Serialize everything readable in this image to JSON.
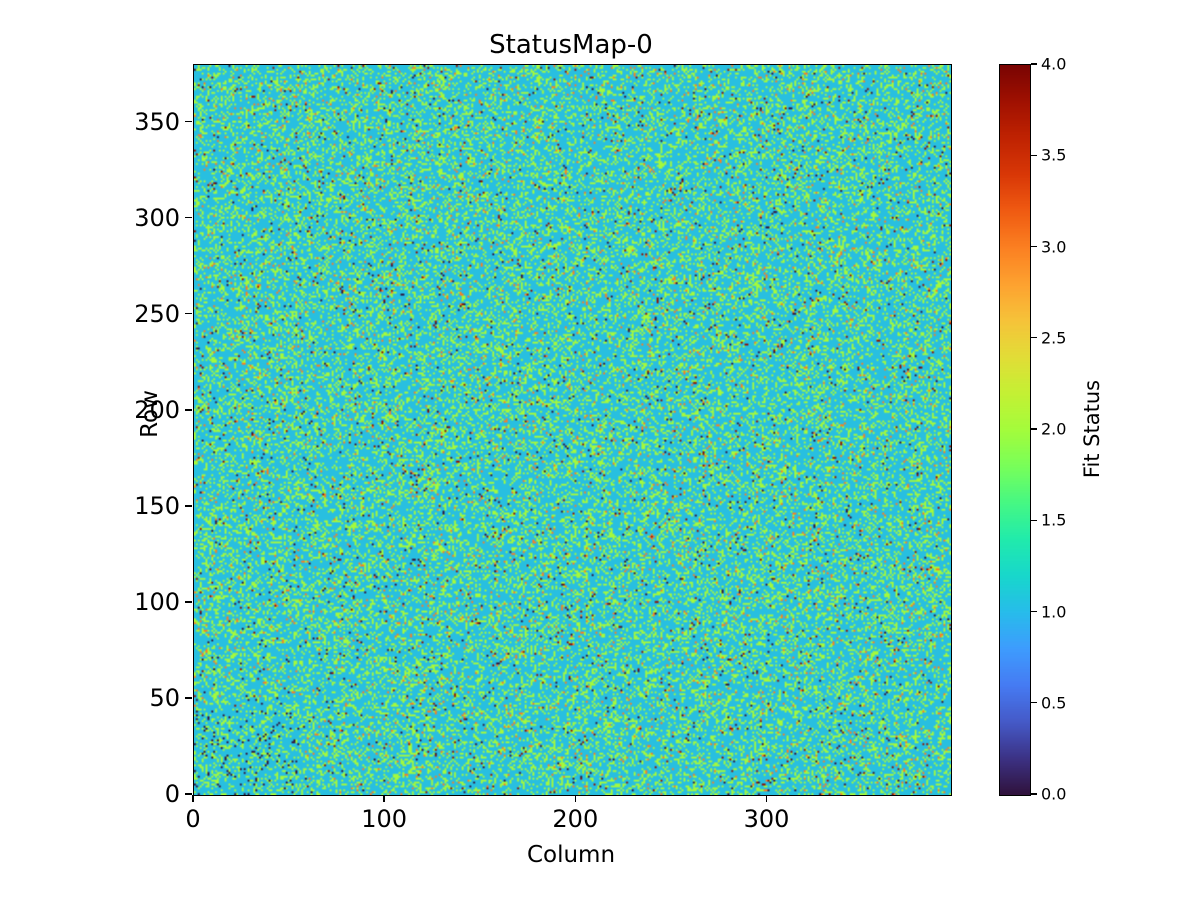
{
  "chart_data": {
    "type": "heatmap",
    "title": "StatusMap-0",
    "xlabel": "Column",
    "ylabel": "Row",
    "x_range": [
      0,
      396
    ],
    "y_range": [
      0,
      380
    ],
    "grid": {
      "rows": 380,
      "cols": 396
    },
    "x_ticks": [
      {
        "value": 0,
        "label": "0"
      },
      {
        "value": 100,
        "label": "100"
      },
      {
        "value": 200,
        "label": "200"
      },
      {
        "value": 300,
        "label": "300"
      }
    ],
    "y_ticks": [
      {
        "value": 0,
        "label": "0"
      },
      {
        "value": 50,
        "label": "50"
      },
      {
        "value": 100,
        "label": "100"
      },
      {
        "value": 150,
        "label": "150"
      },
      {
        "value": 200,
        "label": "200"
      },
      {
        "value": 250,
        "label": "250"
      },
      {
        "value": 300,
        "label": "300"
      },
      {
        "value": 350,
        "label": "350"
      }
    ],
    "colorbar": {
      "label": "Fit Status",
      "vmin": 0.0,
      "vmax": 4.0,
      "ticks": [
        {
          "value": 0.0,
          "label": "0.0"
        },
        {
          "value": 0.5,
          "label": "0.5"
        },
        {
          "value": 1.0,
          "label": "1.0"
        },
        {
          "value": 1.5,
          "label": "1.5"
        },
        {
          "value": 2.0,
          "label": "2.0"
        },
        {
          "value": 2.5,
          "label": "2.5"
        },
        {
          "value": 3.0,
          "label": "3.0"
        },
        {
          "value": 3.5,
          "label": "3.5"
        },
        {
          "value": 4.0,
          "label": "4.0"
        }
      ]
    },
    "colormap": "turbo",
    "colormap_stops": [
      "#30123b",
      "#3c3285",
      "#455ac8",
      "#467bf3",
      "#3e9cfe",
      "#28bceb",
      "#18d7cc",
      "#21ebac",
      "#46f884",
      "#78ff5a",
      "#a4fc3c",
      "#c4f134",
      "#e2dd37",
      "#f6c33a",
      "#fea230",
      "#fb8022",
      "#f05b12",
      "#d93807",
      "#c02302",
      "#a01101",
      "#7a0403"
    ],
    "value_distribution": [
      {
        "value": 0,
        "fraction": 0.01,
        "color": "#30123b"
      },
      {
        "value": 1,
        "fraction": 0.715,
        "color": "#28bfe0"
      },
      {
        "value": 2,
        "fraction": 0.245,
        "color": "#a4f93c"
      },
      {
        "value": 3,
        "fraction": 0.022,
        "color": "#fb7d21"
      },
      {
        "value": 4,
        "fraction": 0.008,
        "color": "#8f0f02"
      }
    ],
    "bottom_left_dark_cluster": {
      "cols": 55,
      "rows": 45,
      "dark_fraction": 0.05
    },
    "random_seed": 42
  }
}
